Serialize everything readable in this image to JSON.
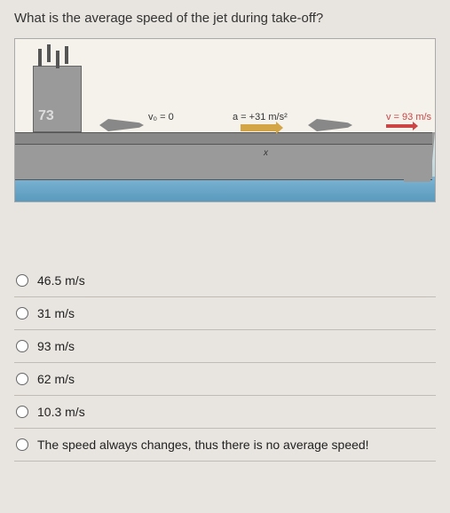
{
  "question": "What is the average speed of the jet during take-off?",
  "diagram": {
    "tower_number": "73",
    "initial_velocity_label": "v₀ = 0",
    "acceleration_label": "a = +31 m/s²",
    "final_velocity_label": "v = 93 m/s",
    "x_label": "x",
    "colors": {
      "background_top": "#f5f2ec",
      "ship": "#9a9a9a",
      "water": "#7db4d4",
      "accel_arrow": "#d4a547",
      "vel_arrow": "#c44"
    }
  },
  "options": [
    {
      "label": "46.5 m/s"
    },
    {
      "label": "31 m/s"
    },
    {
      "label": "93 m/s"
    },
    {
      "label": "62 m/s"
    },
    {
      "label": "10.3 m/s"
    },
    {
      "label": "The speed always changes, thus there is no average speed!"
    }
  ]
}
